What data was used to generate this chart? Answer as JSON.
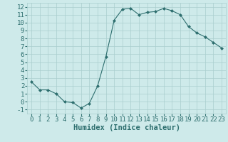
{
  "x": [
    0,
    1,
    2,
    3,
    4,
    5,
    6,
    7,
    8,
    9,
    10,
    11,
    12,
    13,
    14,
    15,
    16,
    17,
    18,
    19,
    20,
    21,
    22,
    23
  ],
  "y": [
    2.5,
    1.5,
    1.5,
    1.0,
    0.0,
    -0.1,
    -0.8,
    -0.2,
    2.0,
    5.7,
    10.3,
    11.7,
    11.8,
    11.0,
    11.3,
    11.4,
    11.8,
    11.5,
    11.0,
    9.5,
    8.7,
    8.2,
    7.5,
    6.8
  ],
  "line_color": "#2d6e6e",
  "marker": "D",
  "marker_size": 2.0,
  "bg_color": "#ceeaea",
  "grid_color": "#aacece",
  "xlabel": "Humidex (Indice chaleur)",
  "xlim": [
    -0.5,
    23.5
  ],
  "ylim": [
    -1.5,
    12.5
  ],
  "yticks": [
    -1,
    0,
    1,
    2,
    3,
    4,
    5,
    6,
    7,
    8,
    9,
    10,
    11,
    12
  ],
  "xticks": [
    0,
    1,
    2,
    3,
    4,
    5,
    6,
    7,
    8,
    9,
    10,
    11,
    12,
    13,
    14,
    15,
    16,
    17,
    18,
    19,
    20,
    21,
    22,
    23
  ],
  "tick_color": "#2d6e6e",
  "label_color": "#2d6e6e",
  "font_size": 6.5,
  "xlabel_font_size": 7.5
}
